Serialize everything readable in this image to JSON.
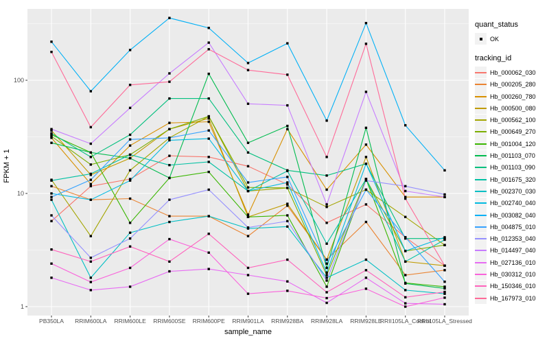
{
  "chart_data": {
    "type": "line",
    "title": "",
    "xlabel": "sample_name",
    "ylabel": "FPKM + 1",
    "y_scale": "log10",
    "y_ticks": [
      1,
      10,
      100
    ],
    "ylim": [
      0.9,
      450
    ],
    "grid": true,
    "panel_bg": "#EBEBEB",
    "grid_color": "#FFFFFF",
    "axis_text_color": "#4D4D4D",
    "point_color": "#000000",
    "x_categories": [
      "PB350LA",
      "RRIM600LA",
      "RRIM600LE",
      "RRIM600SE",
      "RRIM600PE",
      "RRIM901LA",
      "RRIM928BA",
      "RRIM928LA",
      "RRIM928LE",
      "RRII105LA_Control",
      "RRII105LA_Stressed"
    ],
    "legend": {
      "position": "right",
      "quant_status": {
        "title": "quant_status",
        "items": [
          {
            "label": "OK",
            "marker": "point"
          }
        ]
      },
      "tracking_id": {
        "title": "tracking_id"
      }
    },
    "series": [
      {
        "name": "Hb_000062_030",
        "color": "#F8766D",
        "values": [
          5.7,
          11.6,
          13.4,
          21.5,
          21,
          17.4,
          12,
          5.5,
          8.0,
          4.1,
          2.3
        ]
      },
      {
        "name": "Hb_000205_280",
        "color": "#EA8331",
        "values": [
          11.6,
          8.8,
          9.0,
          6.3,
          6.3,
          4.2,
          7.8,
          2.6,
          5.6,
          1.9,
          2.1
        ]
      },
      {
        "name": "Hb_000260_780",
        "color": "#D89000",
        "values": [
          31,
          12.1,
          26.5,
          42,
          43,
          6.5,
          37,
          10.8,
          27,
          9.3,
          9.3
        ]
      },
      {
        "name": "Hb_000500_080",
        "color": "#C09B00",
        "values": [
          36,
          14.6,
          20.5,
          37,
          46,
          6.2,
          8.1,
          2.6,
          21,
          2.5,
          2.3
        ]
      },
      {
        "name": "Hb_000562_100",
        "color": "#A3A500",
        "values": [
          13.2,
          4.2,
          16,
          31,
          48,
          10.5,
          11.2,
          7.6,
          10.8,
          6.2,
          3.5
        ]
      },
      {
        "name": "Hb_000649_270",
        "color": "#7CAE00",
        "values": [
          32,
          18,
          22,
          37,
          48,
          11.3,
          11.2,
          1.9,
          13.4,
          3.1,
          3.5
        ]
      },
      {
        "name": "Hb_001004_120",
        "color": "#39B600",
        "values": [
          33,
          23,
          5.5,
          13.7,
          15.5,
          6.2,
          6.4,
          1.5,
          13.4,
          1.62,
          1.5
        ]
      },
      {
        "name": "Hb_001103_070",
        "color": "#00BB4E",
        "values": [
          28,
          23,
          20.5,
          13.7,
          114,
          28,
          39.5,
          2.2,
          38,
          1.6,
          1.45
        ]
      },
      {
        "name": "Hb_001103_090",
        "color": "#00BF7D",
        "values": [
          34,
          21,
          33,
          69,
          69,
          23,
          16,
          14.4,
          18.3,
          4.0,
          4.0
        ]
      },
      {
        "name": "Hb_001675_320",
        "color": "#00C1A3",
        "values": [
          13,
          14.9,
          22,
          17.8,
          19,
          10.5,
          15.8,
          3.6,
          13.4,
          2.5,
          3.9
        ]
      },
      {
        "name": "Hb_002370_030",
        "color": "#00BFC4",
        "values": [
          8.8,
          1.8,
          4.5,
          5.6,
          6.3,
          4.9,
          5.1,
          1.8,
          2.6,
          1.4,
          1.3
        ]
      },
      {
        "name": "Hb_002740_040",
        "color": "#00BAE0",
        "values": [
          10,
          8.8,
          13,
          29.5,
          30.5,
          10.5,
          12.5,
          2.0,
          18.3,
          3.1,
          4.1
        ]
      },
      {
        "name": "Hb_003082_040",
        "color": "#00B0F6",
        "values": [
          219,
          80,
          185,
          355,
          290,
          142,
          212,
          44,
          320,
          40,
          16
        ]
      },
      {
        "name": "Hb_004875_010",
        "color": "#35A2FF",
        "values": [
          9.3,
          13.2,
          30,
          31,
          36,
          12.5,
          14,
          2.4,
          10.8,
          4.1,
          1.66
        ]
      },
      {
        "name": "Hb_012353_040",
        "color": "#9590FF",
        "values": [
          6.4,
          2.7,
          4.0,
          8.8,
          10.8,
          5.0,
          5.7,
          1.7,
          13,
          11.6,
          9.8
        ]
      },
      {
        "name": "Hb_014497_040",
        "color": "#C77CFF",
        "values": [
          37,
          27.5,
          57,
          115,
          215,
          62,
          60,
          8.0,
          79,
          10.5,
          9.3
        ]
      },
      {
        "name": "Hb_027136_010",
        "color": "#E76BF3",
        "values": [
          1.8,
          1.4,
          1.5,
          2.05,
          2.15,
          1.9,
          1.67,
          1.08,
          1.8,
          1.07,
          1.05
        ]
      },
      {
        "name": "Hb_030312_010",
        "color": "#FA62DB",
        "values": [
          2.4,
          1.65,
          2.2,
          3.95,
          3.0,
          1.3,
          1.38,
          1.19,
          1.44,
          1.0,
          1.2
        ]
      },
      {
        "name": "Hb_150346_010",
        "color": "#FF62BC",
        "values": [
          3.2,
          2.5,
          3.4,
          2.5,
          4.4,
          2.2,
          2.6,
          1.34,
          2.1,
          1.21,
          1.35
        ]
      },
      {
        "name": "Hb_167973_010",
        "color": "#FF6A98",
        "values": [
          178,
          38.5,
          91,
          97,
          188,
          123,
          112,
          21,
          210,
          9.0,
          2.3
        ]
      }
    ]
  }
}
